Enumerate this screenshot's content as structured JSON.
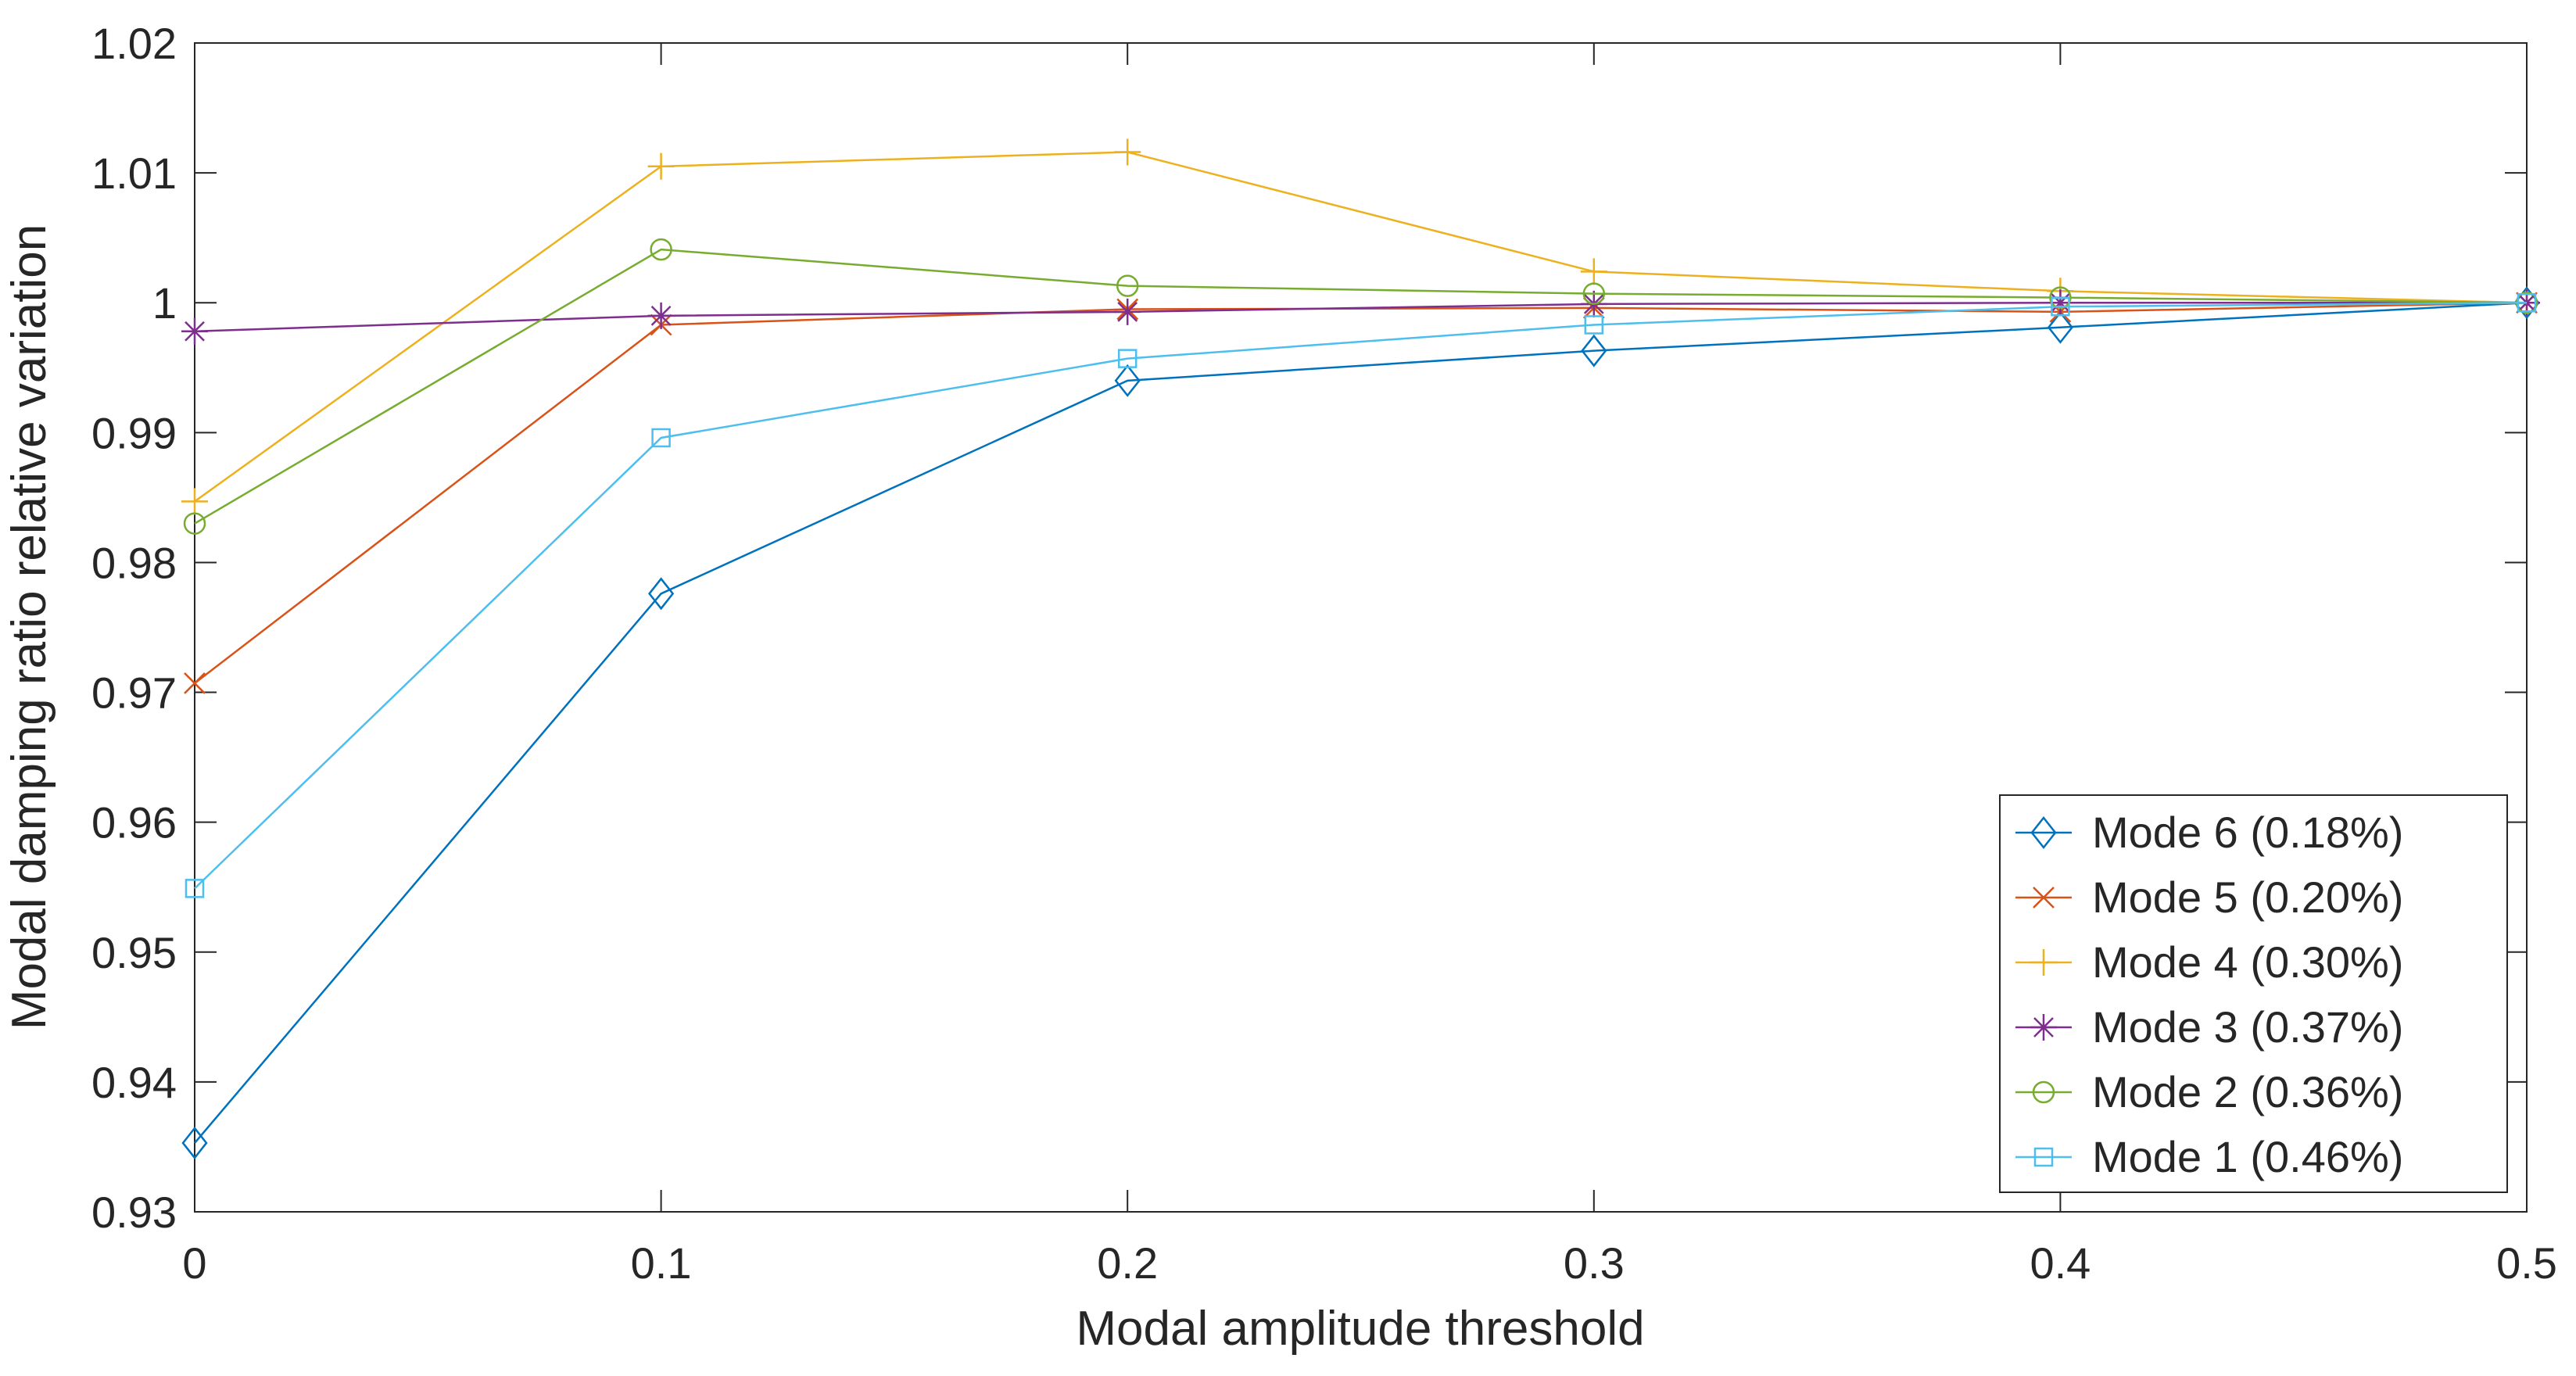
{
  "chart_data": {
    "type": "line",
    "title": "",
    "xlabel": "Modal amplitude threshold",
    "ylabel": "Modal damping ratio relative variation",
    "xlim": [
      0,
      0.5
    ],
    "ylim": [
      0.93,
      1.02
    ],
    "xticks": [
      0,
      0.1,
      0.2,
      0.3,
      0.4,
      0.5
    ],
    "xtick_labels": [
      "0",
      "0.1",
      "0.2",
      "0.3",
      "0.4",
      "0.5"
    ],
    "yticks": [
      0.93,
      0.94,
      0.95,
      0.96,
      0.97,
      0.98,
      0.99,
      1.0,
      1.01,
      1.02
    ],
    "ytick_labels": [
      "0.93",
      "0.94",
      "0.95",
      "0.96",
      "0.97",
      "0.98",
      "0.99",
      "1",
      "1.01",
      "1.02"
    ],
    "grid": false,
    "legend_position": "southeast",
    "x": [
      0,
      0.1,
      0.2,
      0.3,
      0.4,
      0.5
    ],
    "series": [
      {
        "name": "Mode 6 (0.18%)",
        "marker": "diamond",
        "color": "#0072BD",
        "values": [
          0.9353,
          0.9776,
          0.994,
          0.9963,
          0.9981,
          1.0
        ]
      },
      {
        "name": "Mode 5 (0.20%)",
        "marker": "x",
        "color": "#D95319",
        "values": [
          0.9707,
          0.9983,
          0.9995,
          0.9996,
          0.9993,
          1.0
        ]
      },
      {
        "name": "Mode 4 (0.30%)",
        "marker": "plus",
        "color": "#EDB120",
        "values": [
          0.9847,
          1.0105,
          1.0116,
          1.0024,
          1.0009,
          1.0
        ]
      },
      {
        "name": "Mode 3 (0.37%)",
        "marker": "asterisk",
        "color": "#7E2F8E",
        "values": [
          0.9978,
          0.999,
          0.9993,
          0.9999,
          1.0,
          1.0
        ]
      },
      {
        "name": "Mode 2 (0.36%)",
        "marker": "circle",
        "color": "#77AC30",
        "values": [
          0.983,
          1.0041,
          1.0013,
          1.0007,
          1.0004,
          1.0
        ]
      },
      {
        "name": "Mode 1 (0.46%)",
        "marker": "square",
        "color": "#4DBEEE",
        "values": [
          0.9549,
          0.9896,
          0.9957,
          0.9983,
          0.9997,
          1.0
        ]
      }
    ],
    "frame_color": "#262626",
    "text_color": "#262626",
    "background": "#FFFFFF"
  }
}
